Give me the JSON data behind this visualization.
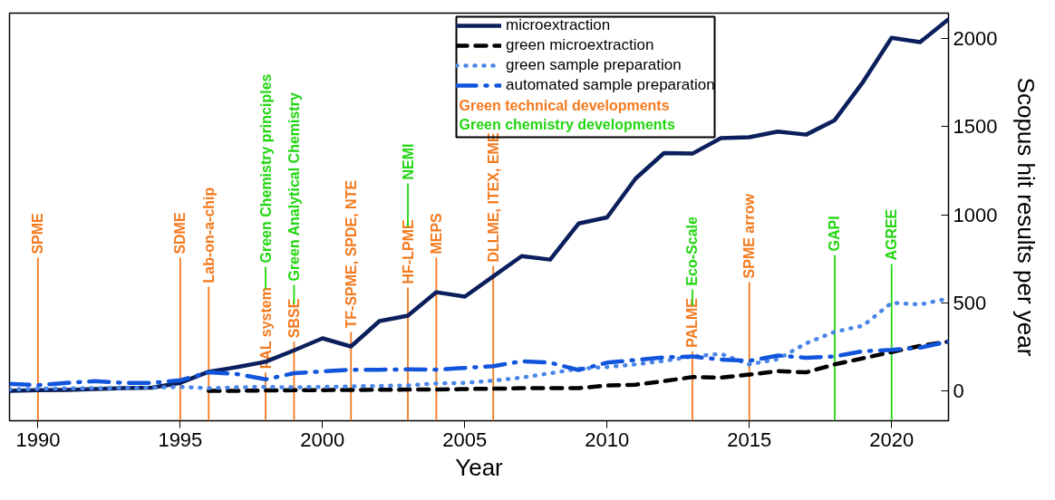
{
  "chart_data": {
    "type": "line",
    "xlabel": "Year",
    "ylabel": "Scopus hit results per year",
    "x": [
      1989,
      1990,
      1991,
      1992,
      1993,
      1994,
      1995,
      1996,
      1997,
      1998,
      1999,
      2000,
      2001,
      2002,
      2003,
      2004,
      2005,
      2006,
      2007,
      2008,
      2009,
      2010,
      2011,
      2012,
      2013,
      2014,
      2015,
      2016,
      2017,
      2018,
      2019,
      2020,
      2021,
      2022
    ],
    "series": [
      {
        "name": "microextraction",
        "color": "#0b1f5c",
        "line_style": "solid",
        "values": [
          0,
          3,
          5,
          10,
          15,
          18,
          45,
          108,
          135,
          165,
          230,
          298,
          252,
          396,
          427,
          560,
          535,
          650,
          765,
          745,
          950,
          985,
          1205,
          1350,
          1347,
          1435,
          1440,
          1472,
          1455,
          1537,
          1755,
          2005,
          1980,
          2110
        ]
      },
      {
        "name": "green microextraction",
        "color": "#000000",
        "line_style": "dashed",
        "x": [
          1996,
          1997,
          1998,
          1999,
          2000,
          2001,
          2002,
          2003,
          2004,
          2005,
          2006,
          2007,
          2008,
          2009,
          2010,
          2011,
          2012,
          2013,
          2014,
          2015,
          2016,
          2017,
          2018,
          2019,
          2020,
          2021,
          2022
        ],
        "values": [
          0,
          0,
          2,
          3,
          4,
          5,
          6,
          7,
          8,
          10,
          12,
          15,
          15,
          15,
          30,
          35,
          55,
          78,
          75,
          92,
          112,
          105,
          150,
          185,
          220,
          255,
          280
        ]
      },
      {
        "name": "green sample preparation",
        "color": "#4a86e8",
        "line_style": "dotted",
        "values": [
          8,
          12,
          14,
          15,
          16,
          18,
          22,
          15,
          20,
          22,
          20,
          22,
          25,
          28,
          30,
          42,
          45,
          58,
          75,
          100,
          125,
          135,
          150,
          170,
          195,
          210,
          150,
          180,
          270,
          335,
          370,
          500,
          490,
          525
        ]
      },
      {
        "name": "automated sample preparation",
        "color": "#1155dd",
        "line_style": "dashdot",
        "values": [
          40,
          32,
          45,
          55,
          45,
          45,
          60,
          105,
          95,
          65,
          100,
          110,
          120,
          120,
          122,
          120,
          130,
          140,
          168,
          160,
          118,
          160,
          175,
          190,
          195,
          178,
          170,
          200,
          188,
          195,
          225,
          232,
          245,
          280
        ]
      }
    ],
    "xlim": [
      1989,
      2022
    ],
    "ylim": [
      -170,
      2145
    ],
    "xticks": [
      1990,
      1995,
      2000,
      2005,
      2010,
      2015,
      2020
    ],
    "yticks": [
      0,
      500,
      1000,
      1500,
      2000
    ],
    "grid": false,
    "legend": "top",
    "ref_lines": [
      {
        "axis": "x",
        "value": 1990,
        "label": "SPME",
        "color": "#f47a1f"
      },
      {
        "axis": "x",
        "value": 1995,
        "label": "SDME",
        "color": "#f47a1f"
      },
      {
        "axis": "x",
        "value": 1996,
        "label": "Lab-on-a-chip",
        "color": "#f47a1f"
      },
      {
        "axis": "x",
        "value": 1998,
        "label": "PAL system",
        "color": "#f47a1f"
      },
      {
        "axis": "x",
        "value": 1998,
        "label": "Green Chemistry principles",
        "color": "#22d611"
      },
      {
        "axis": "x",
        "value": 1999,
        "label": "SBSE",
        "color": "#f47a1f"
      },
      {
        "axis": "x",
        "value": 1999,
        "label": "Green Analytical Chemistry",
        "color": "#22d611"
      },
      {
        "axis": "x",
        "value": 2001,
        "label": "TF-SPME, SPDE, NTE",
        "color": "#f47a1f"
      },
      {
        "axis": "x",
        "value": 2003,
        "label": "HF-LPME",
        "color": "#f47a1f"
      },
      {
        "axis": "x",
        "value": 2003,
        "label": "NEMI",
        "color": "#22d611"
      },
      {
        "axis": "x",
        "value": 2004,
        "label": "MEPS",
        "color": "#f47a1f"
      },
      {
        "axis": "x",
        "value": 2006,
        "label": "DLLME, ITEX, EME",
        "color": "#f47a1f"
      },
      {
        "axis": "x",
        "value": 2013,
        "label": "PALME",
        "color": "#f47a1f"
      },
      {
        "axis": "x",
        "value": 2013,
        "label": "Eco-Scale",
        "color": "#22d611"
      },
      {
        "axis": "x",
        "value": 2015,
        "label": "SPME arrow",
        "color": "#f47a1f"
      },
      {
        "axis": "x",
        "value": 2018,
        "label": "GAPI",
        "color": "#22d611"
      },
      {
        "axis": "x",
        "value": 2020,
        "label": "AGREE",
        "color": "#22d611"
      }
    ],
    "annotations": [
      "Green technical developments",
      "Green chemistry developments"
    ]
  }
}
